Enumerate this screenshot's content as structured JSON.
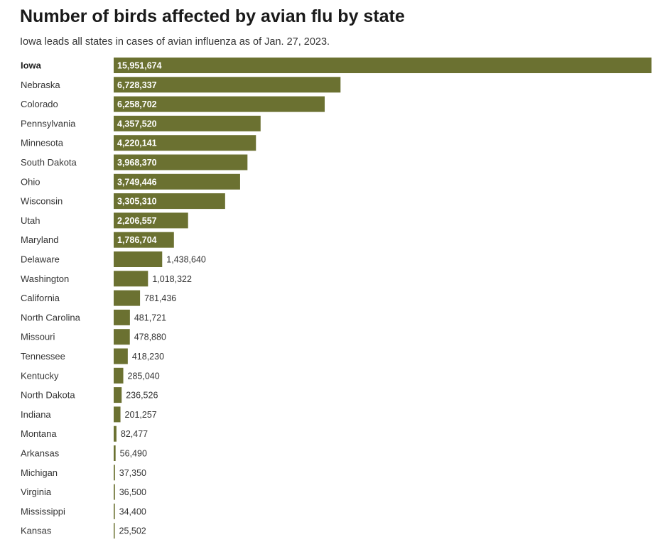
{
  "title": "Number of birds affected by avian flu by state",
  "subtitle": "Iowa leads all states in cases of avian influenza as of Jan. 27, 2023.",
  "colors": {
    "bar": "#6b7131",
    "label": "#333333",
    "value_inside": "#ffffff"
  },
  "chart_data": {
    "type": "bar",
    "orientation": "horizontal",
    "categories": [
      "Iowa",
      "Nebraska",
      "Colorado",
      "Pennsylvania",
      "Minnesota",
      "South Dakota",
      "Ohio",
      "Wisconsin",
      "Utah",
      "Maryland",
      "Delaware",
      "Washington",
      "California",
      "North Carolina",
      "Missouri",
      "Tennessee",
      "Kentucky",
      "North Dakota",
      "Indiana",
      "Montana",
      "Arkansas",
      "Michigan",
      "Virginia",
      "Mississippi",
      "Kansas"
    ],
    "values": [
      15951674,
      6728337,
      6258702,
      4357520,
      4220141,
      3968370,
      3749446,
      3305310,
      2206557,
      1786704,
      1438640,
      1018322,
      781436,
      481721,
      478880,
      418230,
      285040,
      236526,
      201257,
      82477,
      56490,
      37350,
      36500,
      34400,
      25502
    ],
    "value_labels": [
      "15,951,674",
      "6,728,337",
      "6,258,702",
      "4,357,520",
      "4,220,141",
      "3,968,370",
      "3,749,446",
      "3,305,310",
      "2,206,557",
      "1,786,704",
      "1,438,640",
      "1,018,322",
      "781,436",
      "481,721",
      "478,880",
      "418,230",
      "285,040",
      "236,526",
      "201,257",
      "82,477",
      "56,490",
      "37,350",
      "36,500",
      "34,400",
      "25,502"
    ],
    "highlight": "Iowa",
    "title": "Number of birds affected by avian flu by state",
    "subtitle": "Iowa leads all states in cases of avian influenza as of Jan. 27, 2023.",
    "xlabel": "",
    "ylabel": "",
    "xlim": [
      0,
      15951674
    ],
    "grid": false,
    "legend": "none"
  }
}
